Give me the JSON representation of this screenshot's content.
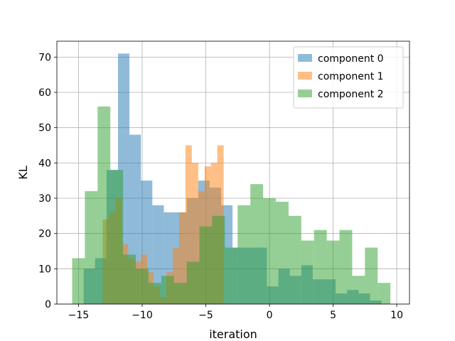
{
  "chart_data": {
    "type": "histogram",
    "xlabel": "iteration",
    "ylabel": "KL",
    "xlim": [
      -16.7,
      11.0
    ],
    "ylim": [
      0,
      74.5
    ],
    "xticks": [
      -15,
      -10,
      -5,
      0,
      5,
      10
    ],
    "yticks": [
      0,
      10,
      20,
      30,
      40,
      50,
      60,
      70
    ],
    "grid": true,
    "legend": "top-right",
    "alpha": 0.5,
    "series": [
      {
        "name": "component 0",
        "color": "#1f77b4",
        "edges": [
          -14.6,
          -13.7,
          -12.8,
          -11.9,
          -11.0,
          -10.1,
          -9.2,
          -8.3,
          -7.4,
          -6.5,
          -5.6,
          -4.7,
          -3.8,
          -2.9,
          -2.0,
          -1.1,
          -0.2,
          0.7,
          1.6,
          2.5,
          3.4,
          4.3,
          5.2,
          6.1,
          7.0,
          7.9,
          8.8
        ],
        "counts": [
          10,
          13,
          38,
          71,
          48,
          35,
          28,
          26,
          26,
          30,
          35,
          33,
          28,
          16,
          16,
          16,
          5,
          10,
          8,
          11,
          7,
          7,
          3,
          4,
          3,
          1
        ]
      },
      {
        "name": "component 1",
        "color": "#ff7f0e",
        "edges": [
          -13.1,
          -12.6,
          -12.1,
          -11.6,
          -11.1,
          -10.6,
          -10.1,
          -9.6,
          -9.1,
          -8.6,
          -8.1,
          -7.6,
          -7.1,
          -6.6,
          -6.1,
          -5.6,
          -5.1,
          -4.6,
          -4.1,
          -3.6
        ],
        "counts": [
          24,
          26,
          30,
          17,
          13,
          12,
          14,
          9,
          5,
          2,
          9,
          16,
          26,
          45,
          40,
          32,
          39,
          40,
          45
        ]
      },
      {
        "name": "component 2",
        "color": "#2ca02c",
        "edges": [
          -15.5,
          -14.5,
          -13.5,
          -12.5,
          -11.5,
          -10.5,
          -9.5,
          -8.5,
          -7.5,
          -6.5,
          -5.5,
          -4.5,
          -3.5,
          -2.5,
          -1.5,
          -0.5,
          0.5,
          1.5,
          2.5,
          3.5,
          4.5,
          5.5,
          6.5,
          7.5,
          8.5,
          9.5
        ],
        "counts": [
          13,
          32,
          56,
          38,
          14,
          10,
          6,
          8,
          6,
          12,
          22,
          25,
          16,
          28,
          34,
          30,
          29,
          25,
          18,
          21,
          18,
          21,
          8,
          16,
          6
        ]
      }
    ]
  }
}
